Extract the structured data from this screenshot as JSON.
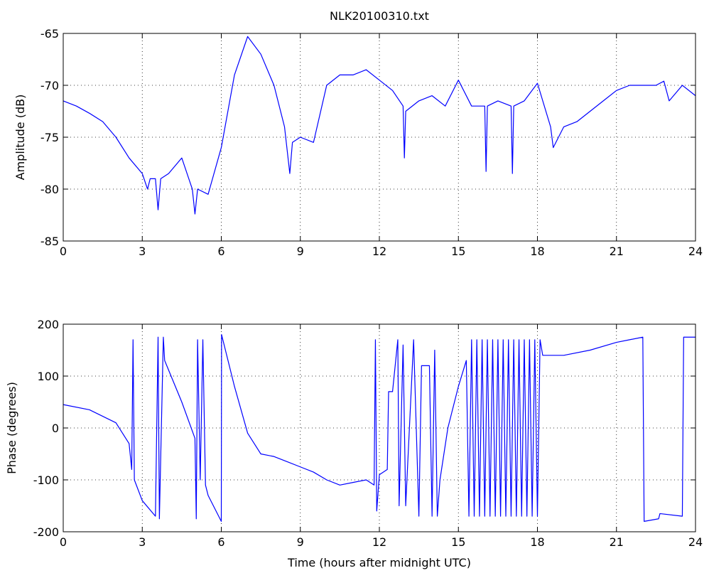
{
  "chart_data": [
    {
      "type": "line",
      "title": "NLK20100310.txt",
      "ylabel": "Amplitude (dB)",
      "color": "#0000ff",
      "grid": true,
      "xlim": [
        0,
        24
      ],
      "xticks": [
        0,
        3,
        6,
        9,
        12,
        15,
        18,
        21,
        24
      ],
      "ylim": [
        -85,
        -65
      ],
      "yticks": [
        -85,
        -80,
        -75,
        -70,
        -65
      ],
      "x": [
        0,
        0.5,
        1,
        1.5,
        2,
        2.5,
        3,
        3.2,
        3.3,
        3.5,
        3.6,
        3.7,
        4,
        4.5,
        4.9,
        5,
        5.1,
        5.5,
        6,
        6.5,
        7,
        7.5,
        8,
        8.4,
        8.6,
        8.7,
        9,
        9.5,
        10,
        10.5,
        11,
        11.5,
        12,
        12.5,
        12.9,
        12.95,
        13,
        13.5,
        14,
        14.5,
        15,
        15.5,
        16,
        16.05,
        16.1,
        16.5,
        17,
        17.05,
        17.1,
        17.5,
        18,
        18.5,
        18.6,
        19,
        19.5,
        20,
        20.5,
        21,
        21.5,
        22,
        22.5,
        22.8,
        23,
        23.5,
        24
      ],
      "values": [
        -71.5,
        -72,
        -72.7,
        -73.5,
        -75,
        -77,
        -78.5,
        -80,
        -79,
        -79,
        -82,
        -79,
        -78.5,
        -77,
        -80,
        -82.4,
        -80,
        -80.5,
        -76,
        -69,
        -65.3,
        -67,
        -70,
        -74,
        -78.5,
        -75.5,
        -75,
        -75.5,
        -70,
        -69,
        -69,
        -68.5,
        -69.5,
        -70.5,
        -72,
        -77,
        -72.5,
        -71.5,
        -71,
        -72,
        -69.5,
        -72,
        -72,
        -78.3,
        -72,
        -71.5,
        -72,
        -78.5,
        -72,
        -71.5,
        -69.8,
        -74,
        -76,
        -74,
        -73.5,
        -72.5,
        -71.5,
        -70.5,
        -70,
        -70,
        -70,
        -69.6,
        -71.5,
        -70,
        -71
      ]
    },
    {
      "type": "line",
      "ylabel": "Phase (degrees)",
      "xlabel": "Time (hours after midnight UTC)",
      "color": "#0000ff",
      "grid": true,
      "xlim": [
        0,
        24
      ],
      "xticks": [
        0,
        3,
        6,
        9,
        12,
        15,
        18,
        21,
        24
      ],
      "ylim": [
        -200,
        200
      ],
      "yticks": [
        -200,
        -100,
        0,
        100,
        200
      ],
      "x": [
        0,
        1,
        2,
        2.5,
        2.6,
        2.65,
        2.7,
        3,
        3.5,
        3.6,
        3.65,
        3.8,
        3.85,
        4.5,
        5,
        5.05,
        5.1,
        5.2,
        5.3,
        5.4,
        5.5,
        6,
        6.01,
        6.5,
        7,
        7.5,
        8,
        8.5,
        9,
        9.5,
        10,
        10.5,
        11,
        11.5,
        11.8,
        11.85,
        11.9,
        12,
        12.3,
        12.35,
        12.5,
        12.7,
        12.75,
        12.9,
        13,
        13.3,
        13.5,
        13.6,
        13.9,
        14,
        14.1,
        14.2,
        14.3,
        14.6,
        15,
        15.3,
        15.4,
        15.5,
        15.6,
        15.7,
        15.8,
        15.9,
        16,
        16.1,
        16.2,
        16.3,
        16.4,
        16.5,
        16.6,
        16.7,
        16.8,
        16.9,
        17,
        17.1,
        17.2,
        17.3,
        17.4,
        17.5,
        17.6,
        17.7,
        17.8,
        17.9,
        18,
        18.1,
        18.2,
        19,
        20,
        21,
        21.5,
        22,
        22.05,
        22.6,
        22.65,
        23.5,
        23.55,
        24
      ],
      "values": [
        45,
        35,
        10,
        -30,
        -80,
        170,
        -100,
        -140,
        -170,
        175,
        -175,
        175,
        130,
        50,
        -20,
        -175,
        170,
        -100,
        170,
        -110,
        -130,
        -180,
        180,
        80,
        -10,
        -50,
        -55,
        -65,
        -75,
        -85,
        -100,
        -110,
        -105,
        -100,
        -110,
        170,
        -160,
        -90,
        -80,
        70,
        70,
        170,
        -150,
        160,
        -150,
        170,
        -170,
        120,
        120,
        -170,
        150,
        -170,
        -100,
        0,
        80,
        130,
        -170,
        170,
        -170,
        170,
        -170,
        170,
        -170,
        170,
        -170,
        170,
        -170,
        170,
        -170,
        170,
        -170,
        170,
        -170,
        170,
        -170,
        170,
        -170,
        170,
        -170,
        170,
        -170,
        170,
        -170,
        170,
        140,
        140,
        150,
        165,
        170,
        175,
        -180,
        -175,
        -165,
        -170,
        175,
        175
      ]
    }
  ]
}
